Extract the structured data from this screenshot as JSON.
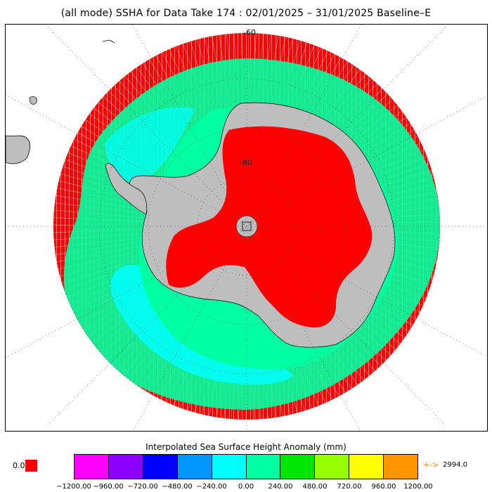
{
  "title": "(all mode) SSHA for Data Take 174 : 02/01/2025 – 31/01/2025 Baseline–E",
  "map": {
    "lat_labels": [
      "-60",
      "-80"
    ],
    "colors": {
      "land": "#bebebe",
      "ice_shelf_anomaly": "#ff0000",
      "coast": "#000000",
      "graticule": "#555555"
    }
  },
  "colorbar": {
    "title": "Interpolated Sea Surface Height Anomaly (mm)",
    "colors": [
      "#ff00ff",
      "#8c00ff",
      "#0000ff",
      "#0096ff",
      "#00ffff",
      "#00ffa0",
      "#00e600",
      "#96ff00",
      "#ffff00",
      "#ff9600"
    ],
    "ticks": [
      "−1200.00",
      "−960.00",
      "−720.00",
      "−480.00",
      "−240.00",
      "0.00",
      "240.00",
      "480.00",
      "720.00",
      "960.00",
      "1200.00"
    ],
    "zero_label": "0.0",
    "zero_color": "#ff0000",
    "overflow_arrow": "+->",
    "overflow_value": "2994.0"
  }
}
